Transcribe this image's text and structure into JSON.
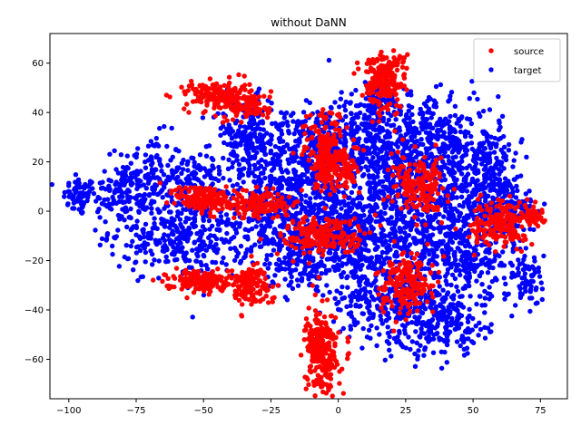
{
  "chart_data": {
    "type": "scatter",
    "title": "without DaNN",
    "xlabel": "",
    "ylabel": "",
    "xlim": [
      -107,
      85
    ],
    "ylim": [
      -76,
      72
    ],
    "xticks": [
      -100,
      -75,
      -50,
      -25,
      0,
      25,
      50,
      75
    ],
    "yticks": [
      -60,
      -40,
      -20,
      0,
      20,
      40,
      60
    ],
    "grid": false,
    "legend_position": "upper-right",
    "series": [
      {
        "name": "target",
        "color": "#0000ff",
        "clusters": [
          {
            "cx": -96,
            "cy": 6,
            "sx": 3,
            "sy": 4,
            "n": 60
          },
          {
            "cx": -82,
            "cy": 8,
            "sx": 6,
            "sy": 6,
            "n": 90
          },
          {
            "cx": -70,
            "cy": 15,
            "sx": 6,
            "sy": 8,
            "n": 120
          },
          {
            "cx": -65,
            "cy": -8,
            "sx": 10,
            "sy": 8,
            "n": 220
          },
          {
            "cx": -50,
            "cy": -12,
            "sx": 8,
            "sy": 8,
            "n": 140
          },
          {
            "cx": -55,
            "cy": 12,
            "sx": 6,
            "sy": 6,
            "n": 90
          },
          {
            "cx": -35,
            "cy": 30,
            "sx": 6,
            "sy": 8,
            "n": 150
          },
          {
            "cx": -20,
            "cy": 20,
            "sx": 10,
            "sy": 12,
            "n": 260
          },
          {
            "cx": -25,
            "cy": -5,
            "sx": 8,
            "sy": 8,
            "n": 160
          },
          {
            "cx": -10,
            "cy": 5,
            "sx": 12,
            "sy": 14,
            "n": 300
          },
          {
            "cx": -5,
            "cy": 25,
            "sx": 6,
            "sy": 8,
            "n": 150
          },
          {
            "cx": 5,
            "cy": -15,
            "sx": 10,
            "sy": 10,
            "n": 260
          },
          {
            "cx": -15,
            "cy": -20,
            "sx": 6,
            "sy": 6,
            "n": 100
          },
          {
            "cx": 10,
            "cy": 30,
            "sx": 8,
            "sy": 8,
            "n": 200
          },
          {
            "cx": 20,
            "cy": 15,
            "sx": 10,
            "sy": 12,
            "n": 320
          },
          {
            "cx": 15,
            "cy": 45,
            "sx": 5,
            "sy": 4,
            "n": 90
          },
          {
            "cx": 35,
            "cy": 30,
            "sx": 8,
            "sy": 8,
            "n": 200
          },
          {
            "cx": 45,
            "cy": 10,
            "sx": 10,
            "sy": 12,
            "n": 280
          },
          {
            "cx": 30,
            "cy": -10,
            "sx": 10,
            "sy": 10,
            "n": 260
          },
          {
            "cx": 50,
            "cy": -20,
            "sx": 10,
            "sy": 8,
            "n": 220
          },
          {
            "cx": 40,
            "cy": -45,
            "sx": 8,
            "sy": 7,
            "n": 200
          },
          {
            "cx": 25,
            "cy": -40,
            "sx": 6,
            "sy": 8,
            "n": 150
          },
          {
            "cx": 62,
            "cy": 0,
            "sx": 6,
            "sy": 6,
            "n": 160
          },
          {
            "cx": 70,
            "cy": -28,
            "sx": 3,
            "sy": 5,
            "n": 50
          },
          {
            "cx": 10,
            "cy": -35,
            "sx": 6,
            "sy": 8,
            "n": 120
          },
          {
            "cx": 5,
            "cy": -5,
            "sx": 6,
            "sy": 6,
            "n": 150
          },
          {
            "cx": 55,
            "cy": 20,
            "sx": 6,
            "sy": 8,
            "n": 120
          }
        ]
      },
      {
        "name": "source",
        "color": "#ff0000",
        "clusters": [
          {
            "cx": -45,
            "cy": 47,
            "sx": 6,
            "sy": 3,
            "n": 160
          },
          {
            "cx": -33,
            "cy": 42,
            "sx": 4,
            "sy": 3,
            "n": 90
          },
          {
            "cx": -50,
            "cy": 5,
            "sx": 5,
            "sy": 3,
            "n": 140
          },
          {
            "cx": -30,
            "cy": 3,
            "sx": 6,
            "sy": 3,
            "n": 140
          },
          {
            "cx": -52,
            "cy": -28,
            "sx": 6,
            "sy": 2,
            "n": 170
          },
          {
            "cx": -33,
            "cy": -30,
            "sx": 4,
            "sy": 4,
            "n": 140
          },
          {
            "cx": 17,
            "cy": 53,
            "sx": 4,
            "sy": 6,
            "n": 220
          },
          {
            "cx": -5,
            "cy": 25,
            "sx": 4,
            "sy": 8,
            "n": 140
          },
          {
            "cx": 0,
            "cy": 17,
            "sx": 4,
            "sy": 5,
            "n": 110
          },
          {
            "cx": -5,
            "cy": -10,
            "sx": 8,
            "sy": 4,
            "n": 200
          },
          {
            "cx": -6,
            "cy": -57,
            "sx": 3,
            "sy": 8,
            "n": 280
          },
          {
            "cx": 30,
            "cy": 10,
            "sx": 5,
            "sy": 6,
            "n": 180
          },
          {
            "cx": 25,
            "cy": -30,
            "sx": 5,
            "sy": 6,
            "n": 190
          },
          {
            "cx": 60,
            "cy": -5,
            "sx": 5,
            "sy": 5,
            "n": 170
          },
          {
            "cx": 72,
            "cy": -2,
            "sx": 2,
            "sy": 2,
            "n": 60
          }
        ]
      }
    ]
  }
}
